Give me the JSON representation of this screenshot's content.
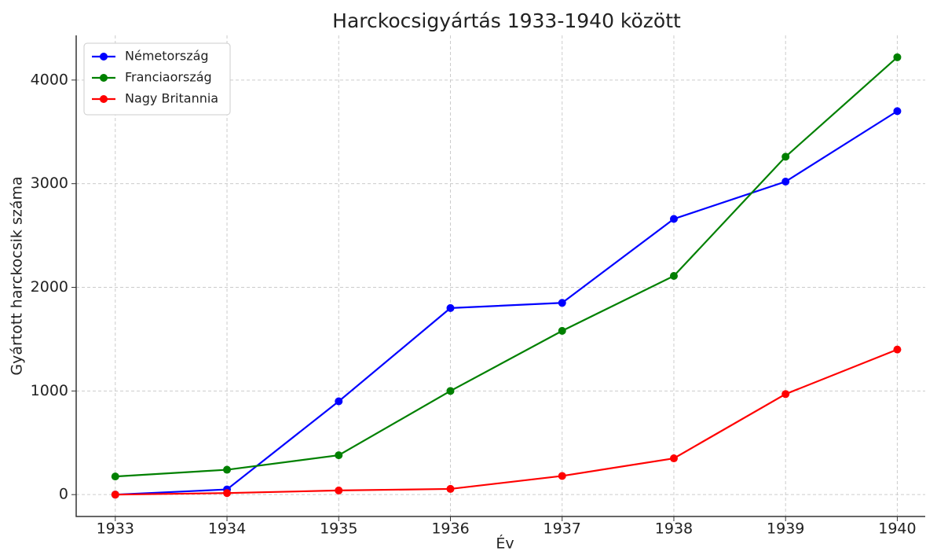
{
  "chart_data": {
    "type": "line",
    "title": "Harckocsigyártás 1933-1940 között",
    "xlabel": "Év",
    "ylabel": "Gyártott harckocsik száma",
    "x": [
      1933,
      1934,
      1935,
      1936,
      1937,
      1938,
      1939,
      1940
    ],
    "series": [
      {
        "name": "Németország",
        "color": "#0000ff",
        "values": [
          0,
          50,
          900,
          1800,
          1850,
          2660,
          3020,
          3700
        ]
      },
      {
        "name": "Franciaország",
        "color": "#008000",
        "values": [
          175,
          240,
          380,
          1000,
          1580,
          2110,
          3260,
          4220
        ]
      },
      {
        "name": "Nagy Britannia",
        "color": "#ff0000",
        "values": [
          0,
          15,
          40,
          55,
          180,
          350,
          970,
          1400
        ]
      }
    ],
    "xlim": [
      1932.65,
      1940.25
    ],
    "xticks": [
      1933,
      1934,
      1935,
      1936,
      1937,
      1938,
      1939,
      1940
    ],
    "ylim": [
      -211,
      4431
    ],
    "yticks": [
      0,
      1000,
      2000,
      3000,
      4000
    ],
    "grid": true,
    "legend": "upper left"
  }
}
